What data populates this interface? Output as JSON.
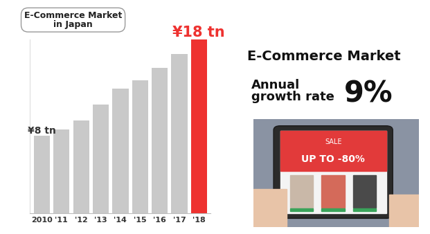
{
  "chart_data": {
    "type": "bar",
    "title": "E-Commerce Market\nin Japan",
    "categories": [
      "2010",
      "'11",
      "'12",
      "'13",
      "'14",
      "'15",
      "'16",
      "'17",
      "'18"
    ],
    "values": [
      8,
      8.7,
      9.6,
      11.3,
      12.9,
      13.8,
      15.1,
      16.5,
      18
    ],
    "value_labels": [
      "¥8 tn",
      null,
      null,
      null,
      null,
      null,
      null,
      null,
      "¥18 tn"
    ],
    "data_labels": true,
    "colors": [
      "#c9c9c9",
      "#c9c9c9",
      "#c9c9c9",
      "#c9c9c9",
      "#c9c9c9",
      "#c9c9c9",
      "#c9c9c9",
      "#c9c9c9",
      "#ee3230"
    ],
    "ylim": [
      0,
      18
    ],
    "yticks": [],
    "grid": false,
    "tick_labels": "x",
    "annotations": {
      "heading": "E-Commerce Market",
      "growth_label": "Annual\ngrowth rate",
      "growth_value": "9%"
    },
    "image_texts": {
      "banner": "SALE",
      "offer": "UP TO -80%"
    }
  }
}
